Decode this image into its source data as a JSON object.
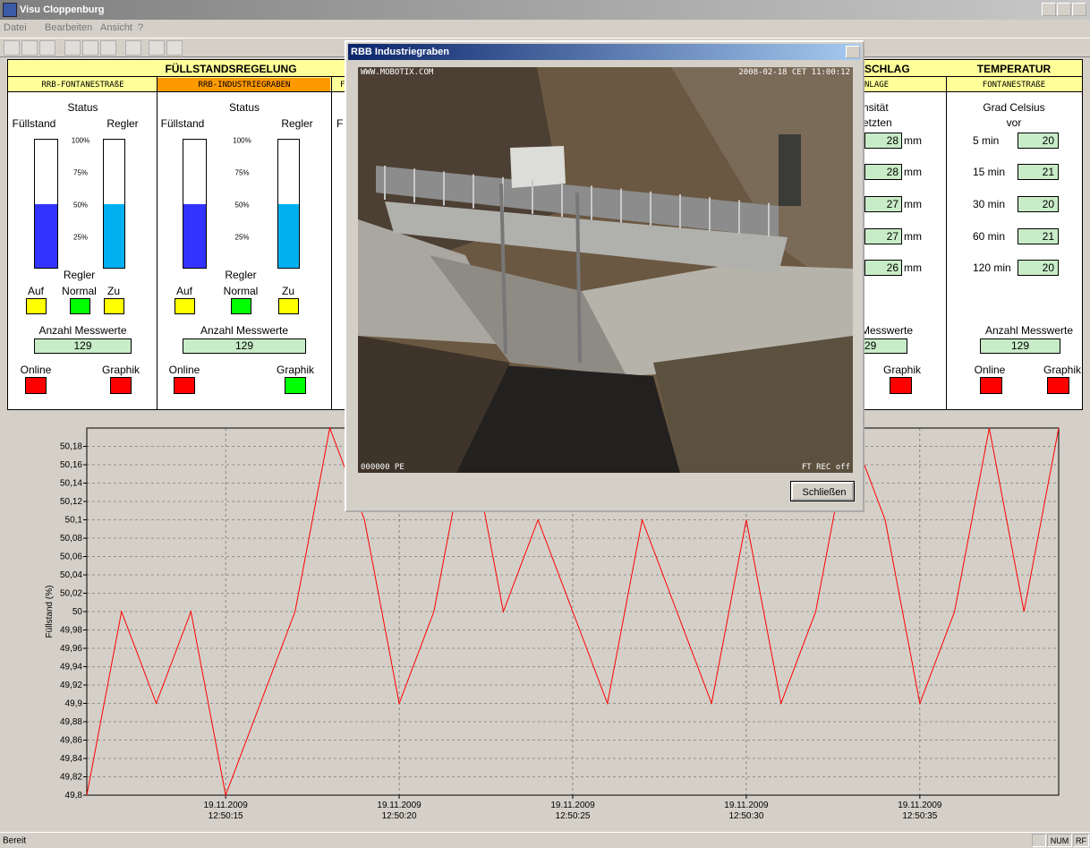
{
  "window": {
    "title": "Visu Cloppenburg",
    "menu": [
      "Datei",
      "Bearbeiten",
      "Ansicht",
      "?"
    ]
  },
  "headers": {
    "level": "FÜLLSTANDSREGELUNG",
    "rain": "SCHLAG",
    "temp": "TEMPERATUR"
  },
  "levels": [
    {
      "station": "RRB-FONTANESTRAßE",
      "status": "Status",
      "fill_label": "Füllstand",
      "ctrl_label": "Regler",
      "scale": [
        "100%",
        "75%",
        "50%",
        "25%"
      ],
      "fill": 50,
      "ctrl": 50,
      "fill_color": "#3333ff",
      "ctrl_color": "#00b0f0",
      "mode_title": "Regler",
      "modes": [
        "Auf",
        "Normal",
        "Zu"
      ],
      "mode_colors": [
        "#ffff00",
        "#00ff00",
        "#ffff00"
      ],
      "count_label": "Anzahl Messwerte",
      "count": 129,
      "online": "Online",
      "online_color": "#ff0000",
      "graph": "Graphik",
      "graph_color": "#ff0000",
      "highlight": "#ffff99"
    },
    {
      "station": "RRB-INDUSTRIEGRABEN",
      "status": "Status",
      "fill_label": "Füllstand",
      "ctrl_label": "Regler",
      "scale": [
        "100%",
        "75%",
        "50%",
        "25%"
      ],
      "fill": 50,
      "ctrl": 50,
      "fill_color": "#3333ff",
      "ctrl_color": "#00b0f0",
      "mode_title": "Regler",
      "modes": [
        "Auf",
        "Normal",
        "Zu"
      ],
      "mode_colors": [
        "#ffff00",
        "#00ff00",
        "#ffff00"
      ],
      "count_label": "Anzahl Messwerte",
      "count": 129,
      "online": "Online",
      "online_color": "#ff0000",
      "graph": "Graphik",
      "graph_color": "#00ff00",
      "highlight": "#ff9900"
    }
  ],
  "hidden_panel": {
    "station": "F",
    "label": "F"
  },
  "rain": {
    "station": "NLAGE",
    "intensity": "nsität",
    "period": "etzten",
    "values": [
      28,
      28,
      27,
      27,
      26
    ],
    "unit": "mm",
    "count_label": "Messwerte",
    "count": 29,
    "graph": "Graphik",
    "graph_color": "#ff0000"
  },
  "temp": {
    "station": "FONTANESTRAßE",
    "unit": "Grad Celsius",
    "ago": "vor",
    "rows": [
      {
        "label": "5 min",
        "value": 20
      },
      {
        "label": "15 min",
        "value": 21
      },
      {
        "label": "30 min",
        "value": 20
      },
      {
        "label": "60 min",
        "value": 21
      },
      {
        "label": "120 min",
        "value": 20
      }
    ],
    "count_label": "Anzahl Messwerte",
    "count": 129,
    "online": "Online",
    "online_color": "#ff0000",
    "graph": "Graphik",
    "graph_color": "#ff0000"
  },
  "dialog": {
    "title": "RBB Industriegraben",
    "cam_url": "WWW.MOBOTIX.COM",
    "cam_time": "2008-02-18 CET 11:00:12",
    "cam_id": "000000 PE",
    "cam_rec": "FT REC off",
    "button": "Schließen"
  },
  "chart_data": {
    "type": "line",
    "y_label": "Füllstand (%)",
    "color": "#ff0000",
    "grid": true,
    "categories": [
      null,
      null,
      null,
      null,
      "19.11.2009\n12:50:15",
      null,
      null,
      null,
      null,
      "19.11.2009\n12:50:20",
      null,
      null,
      null,
      null,
      "19.11.2009\n12:50:25",
      null,
      null,
      null,
      null,
      "19.11.2009\n12:50:30",
      null,
      null,
      null,
      null,
      "19.11.2009\n12:50:35",
      null,
      null,
      null,
      null
    ],
    "values": [
      49.8,
      50,
      49.9,
      50,
      49.8,
      49.9,
      50,
      50.2,
      50.1,
      49.9,
      50,
      50.2,
      50,
      50.1,
      50,
      49.9,
      50.1,
      50,
      49.9,
      50.1,
      49.9,
      50,
      50.2,
      50.1,
      49.9,
      50,
      50.2,
      50,
      50.2
    ],
    "ylim": [
      49.8,
      50.2
    ],
    "yticks": [
      {
        "value": 49.8,
        "label": "49,8"
      },
      {
        "value": 49.82,
        "label": "49,82"
      },
      {
        "value": 49.84,
        "label": "49,84"
      },
      {
        "value": 49.86,
        "label": "49,86"
      },
      {
        "value": 49.88,
        "label": "49,88"
      },
      {
        "value": 49.9,
        "label": "49,9"
      },
      {
        "value": 49.92,
        "label": "49,92"
      },
      {
        "value": 49.94,
        "label": "49,94"
      },
      {
        "value": 49.96,
        "label": "49,96"
      },
      {
        "value": 49.98,
        "label": "49,98"
      },
      50,
      {
        "value": 50.02,
        "label": "50,02"
      },
      {
        "value": 50.04,
        "label": "50,04"
      },
      {
        "value": 50.06,
        "label": "50,06"
      },
      {
        "value": 50.08,
        "label": "50,08"
      },
      {
        "value": 50.1,
        "label": "50,1"
      },
      {
        "value": 50.12,
        "label": "50,12"
      },
      {
        "value": 50.14,
        "label": "50,14"
      },
      {
        "value": 50.16,
        "label": "50,16"
      },
      {
        "value": 50.18,
        "label": "50,18"
      }
    ]
  },
  "statusbar": {
    "text": "Bereit",
    "num": "NUM",
    "rf": "RF"
  }
}
